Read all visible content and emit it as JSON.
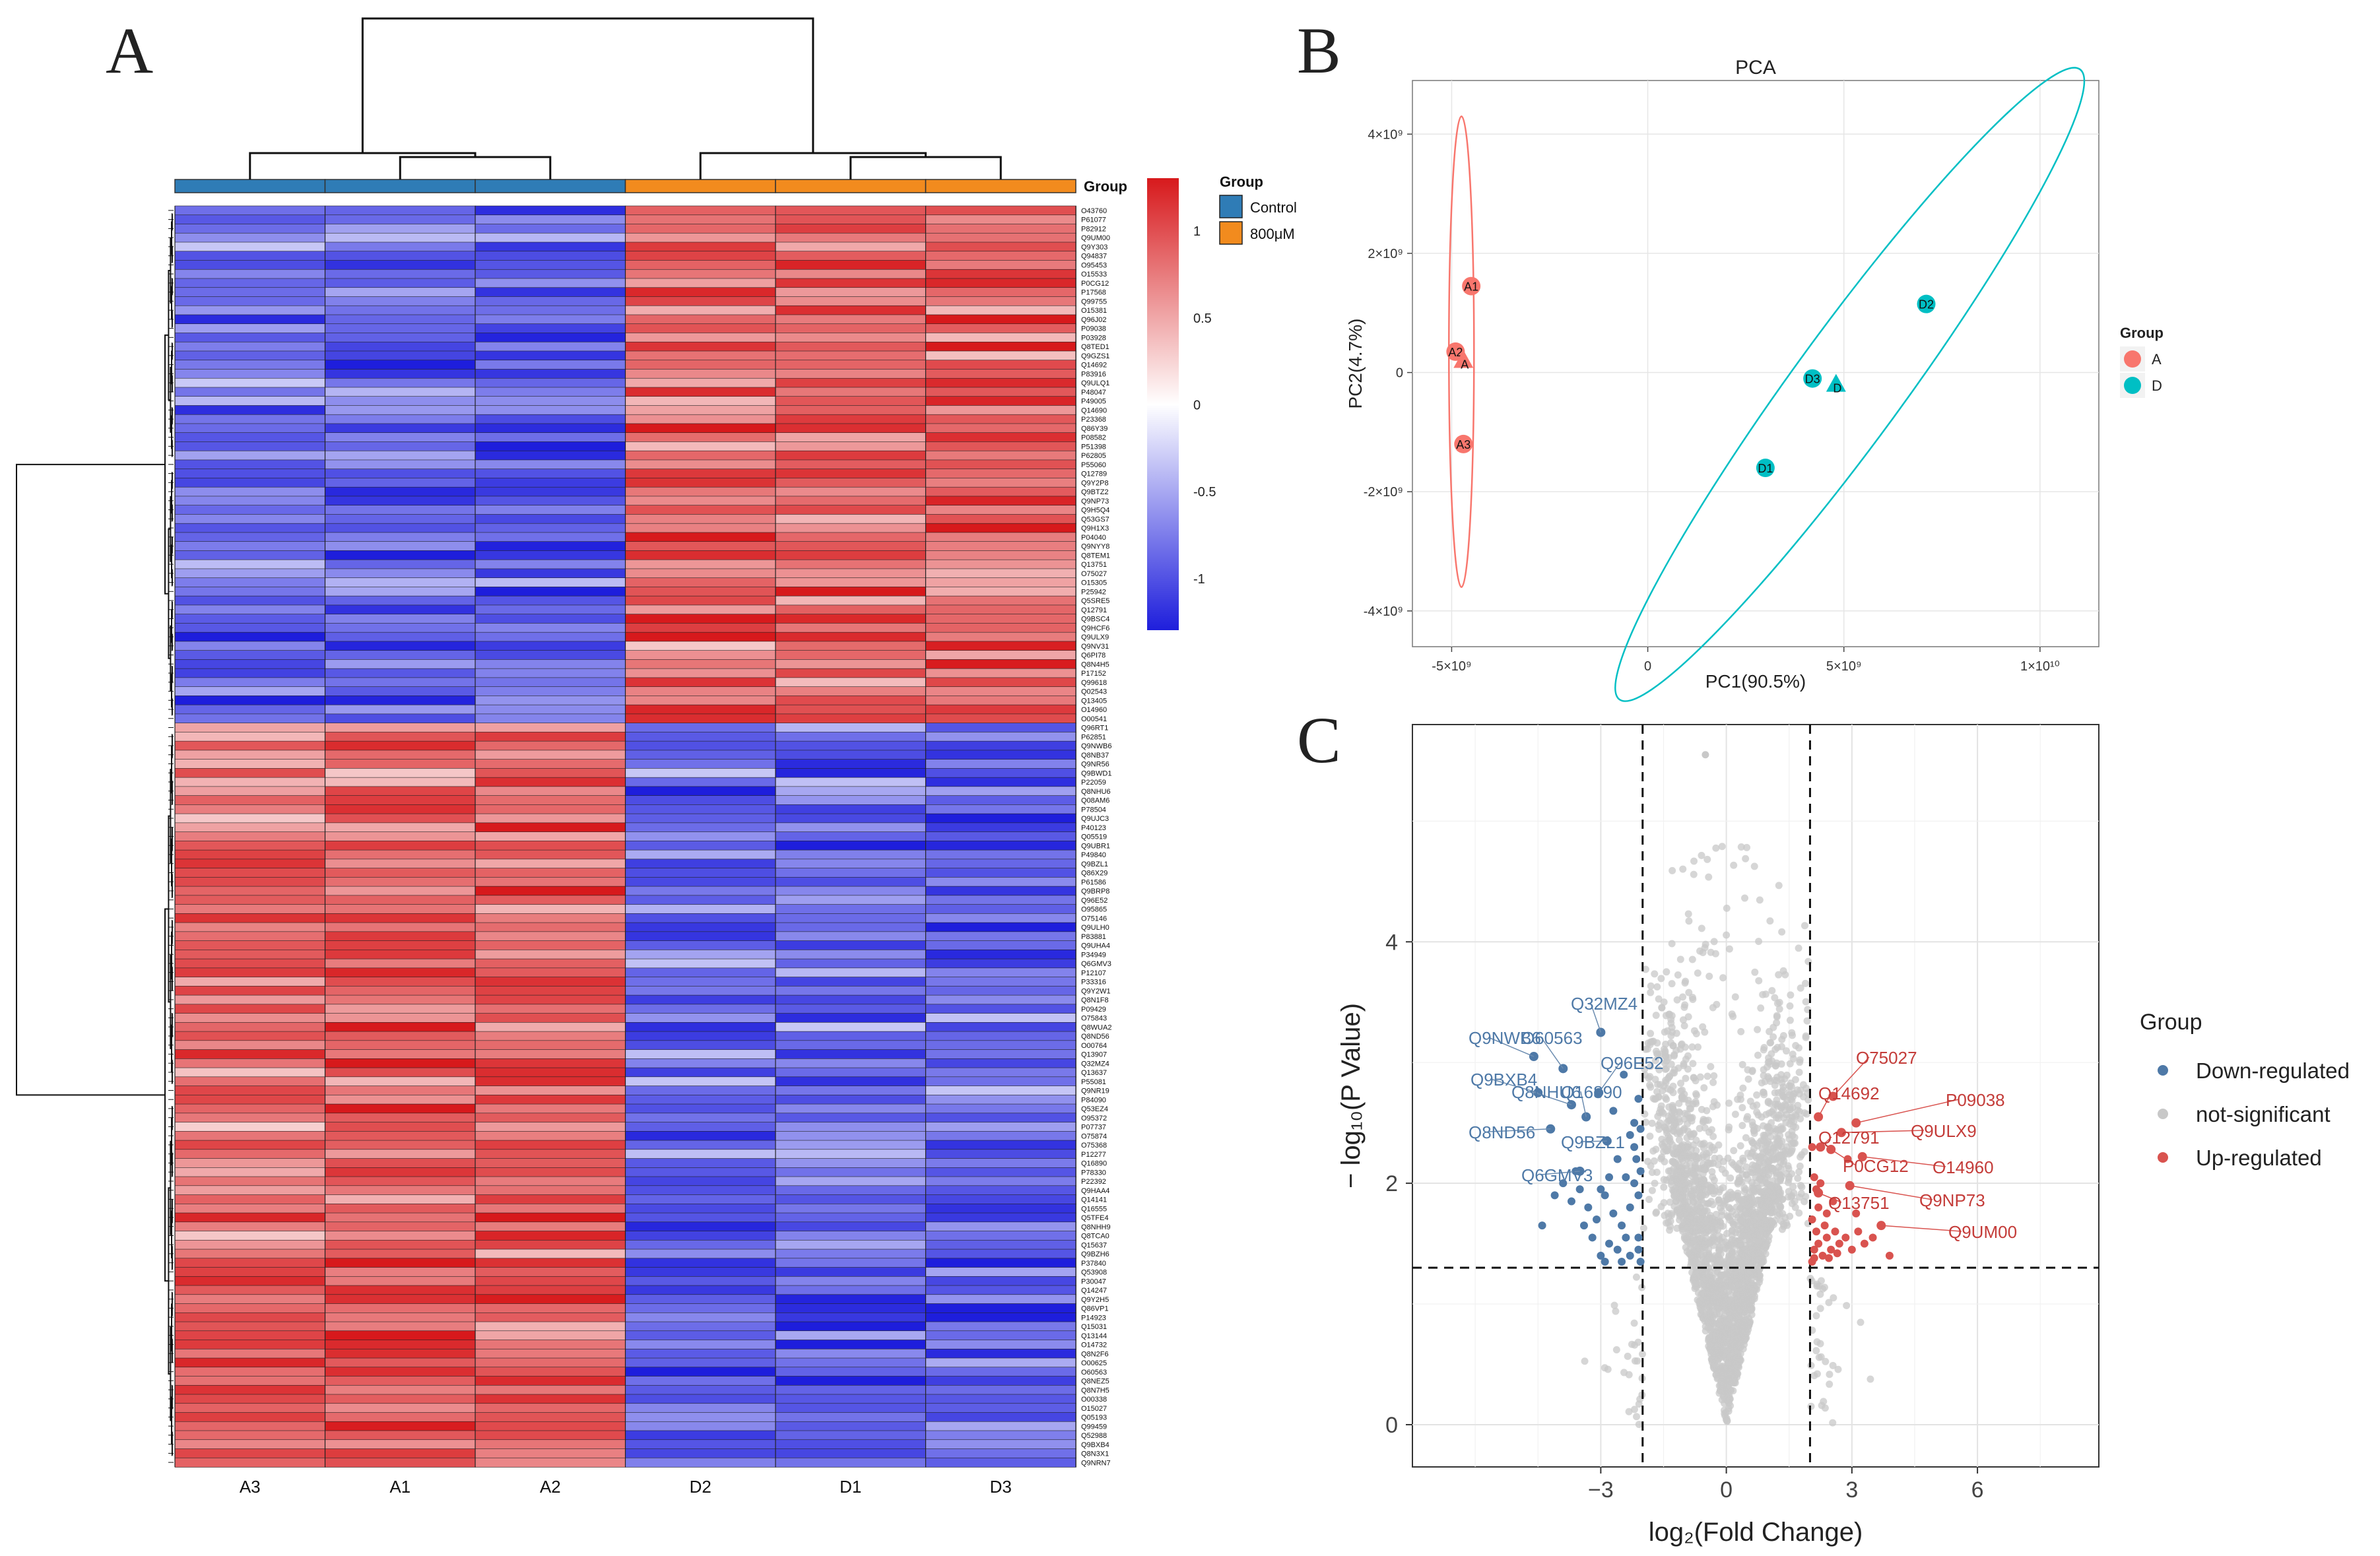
{
  "panels": {
    "A": {
      "letter": "A"
    },
    "B": {
      "letter": "B"
    },
    "C": {
      "letter": "C"
    }
  },
  "chart_data": [
    {
      "type": "heatmap",
      "panel": "A",
      "group_label": "Group",
      "columns": [
        "A3",
        "A1",
        "A2",
        "D2",
        "D1",
        "D3"
      ],
      "column_groups": [
        "Control",
        "Control",
        "Control",
        "800μM",
        "800μM",
        "800μM"
      ],
      "legend": {
        "title": "Group",
        "entries": [
          {
            "label": "Control",
            "color": "#2f7cb6"
          },
          {
            "label": "800μM",
            "color": "#f28b1e"
          }
        ]
      },
      "colorbar": {
        "ticks": [
          "1",
          "0.5",
          "0",
          "-0.5",
          "-1"
        ],
        "values": [
          1,
          0.5,
          0,
          -0.5,
          -1
        ],
        "range": [
          -1.3,
          1.3
        ],
        "colors": [
          "#1e1edc",
          "#ffffff",
          "#d7191c"
        ]
      },
      "upregulated_rows": [
        "O43760",
        "P61077",
        "P82912",
        "Q9UM00",
        "Q9Y303",
        "Q94837",
        "O95453",
        "O15533",
        "P0CG12",
        "P17568",
        "Q99755",
        "O15381",
        "Q96J02",
        "P09038",
        "P03928",
        "Q8TED1",
        "Q9GZS1",
        "Q14692",
        "P83916",
        "Q9ULQ1",
        "P48047",
        "P49005",
        "Q14690",
        "P23368",
        "Q86Y39",
        "P08582",
        "P51398",
        "P62805",
        "P55060",
        "Q12789",
        "Q9Y2P8",
        "Q9BTZ2",
        "Q9NP73",
        "Q9H5Q4",
        "Q53GS7",
        "Q9H1X3",
        "P04040",
        "Q9NYY8",
        "Q8TEM1",
        "Q13751",
        "O75027",
        "O15305",
        "P25942",
        "Q5SRE5",
        "Q12791",
        "Q9BSC4",
        "Q9HCF6",
        "Q9ULX9",
        "Q9NV31",
        "Q6PI78",
        "Q8N4H5",
        "P17152",
        "Q99618",
        "Q02543",
        "Q13405",
        "O14960",
        "O00541"
      ],
      "downregulated_rows": [
        "Q96RT1",
        "P62851",
        "Q9NWB6",
        "Q8NB37",
        "Q9NR56",
        "Q9BWD1",
        "P22059",
        "Q8NHU6",
        "Q08AM6",
        "P78504",
        "Q9UJC3",
        "P40123",
        "Q05519",
        "Q9UBR1",
        "P49840",
        "Q9BZL1",
        "Q86X29",
        "P61586",
        "Q9BRP8",
        "Q96E52",
        "O95865",
        "O75146",
        "Q9ULH0",
        "P83881",
        "Q9UHA4",
        "P34949",
        "Q6GMV3",
        "P12107",
        "P33316",
        "Q9Y2W1",
        "Q8N1F8",
        "P09429",
        "O75843",
        "Q8WUA2",
        "Q8ND56",
        "O00764",
        "Q13907",
        "Q32MZ4",
        "Q13637",
        "P55081",
        "Q9NR19",
        "P84090",
        "Q53EZ4",
        "O95372",
        "P07737",
        "O75874",
        "O75368",
        "P12277",
        "Q16890",
        "P78330",
        "P22392",
        "Q9HAA4",
        "Q14141",
        "Q16555",
        "Q5TFE4",
        "Q8NHH9",
        "Q8TCA0",
        "Q15637",
        "Q9BZH6",
        "P37840",
        "Q53908",
        "P30047",
        "Q14247",
        "Q9Y2H5",
        "Q86VP1",
        "P14923",
        "Q15031",
        "Q13144",
        "O14732",
        "Q8N2F6",
        "O00625",
        "O60563",
        "Q8NEZ5",
        "Q8N7H5",
        "O00338",
        "O15027",
        "Q05193",
        "Q99459",
        "Q52988",
        "Q9BXB4",
        "Q8N3X1",
        "Q9NRN7"
      ]
    },
    {
      "type": "scatter",
      "panel": "B",
      "title": "PCA",
      "xlabel": "PC1(90.5%)",
      "ylabel": "PC2(4.7%)",
      "xlim": [
        -6000000000.0,
        11500000000.0
      ],
      "ylim": [
        -4600000000.0,
        4900000000.0
      ],
      "xticks": [
        {
          "v": -5000000000.0,
          "label": "-5×10⁹"
        },
        {
          "v": 0,
          "label": "0"
        },
        {
          "v": 5000000000.0,
          "label": "5×10⁹"
        },
        {
          "v": 10000000000.0,
          "label": "1×10¹⁰"
        }
      ],
      "yticks": [
        {
          "v": 4000000000.0,
          "label": "4×10⁹"
        },
        {
          "v": 2000000000.0,
          "label": "2×10⁹"
        },
        {
          "v": 0,
          "label": "0"
        },
        {
          "v": -2000000000.0,
          "label": "-2×10⁹"
        },
        {
          "v": -4000000000.0,
          "label": "-4×10⁹"
        }
      ],
      "legend_title": "Group",
      "groups": [
        {
          "name": "A",
          "color": "#f8766d",
          "points": [
            {
              "label": "A1",
              "x": -4500000000.0,
              "y": 1450000000.0
            },
            {
              "label": "A2",
              "x": -4900000000.0,
              "y": 350000000.0
            },
            {
              "label": "A3",
              "x": -4700000000.0,
              "y": -1200000000.0
            }
          ],
          "centroid": {
            "label": "A",
            "x": -4700000000.0,
            "y": 200000000.0
          },
          "ellipse": {
            "cx": -4750000000.0,
            "cy": 350000000.0,
            "rx": 320000000.0,
            "ry": 3950000000.0,
            "angle_deg": 0
          }
        },
        {
          "name": "D",
          "color": "#00bfc4",
          "points": [
            {
              "label": "D2",
              "x": 7100000000.0,
              "y": 1150000000.0
            },
            {
              "label": "D3",
              "x": 4200000000.0,
              "y": -100000000.0
            },
            {
              "label": "D1",
              "x": 3000000000.0,
              "y": -1600000000.0
            }
          ],
          "centroid": {
            "label": "D",
            "x": 4800000000.0,
            "y": -200000000.0
          },
          "ellipse": {
            "cx": 5150000000.0,
            "cy": -200000000.0,
            "rx": 7900000000.0,
            "ry": 920000000.0,
            "angle_deg": 42
          }
        }
      ]
    },
    {
      "type": "scatter",
      "panel": "C",
      "xlabel": "log₂(Fold Change)",
      "ylabel": "− log₁₀(P Value)",
      "xlim": [
        -7.5,
        8.9
      ],
      "ylim": [
        -0.35,
        5.8
      ],
      "xticks": [
        -3,
        0,
        3,
        6
      ],
      "yticks": [
        0,
        2,
        4
      ],
      "thresholds": {
        "fc": [
          -2,
          2
        ],
        "p": 1.3
      },
      "legend": {
        "title": "Group",
        "entries": [
          {
            "label": "Down-regulated",
            "color": "#4e79a7"
          },
          {
            "label": "not-significant",
            "color": "#c8c8c8"
          },
          {
            "label": "Up-regulated",
            "color": "#d9534f"
          }
        ]
      },
      "down_labeled": [
        {
          "label": "Q32MZ4",
          "x": -3.0,
          "y": 3.25
        },
        {
          "label": "Q9NWB6",
          "x": -4.6,
          "y": 3.05
        },
        {
          "label": "O60563",
          "x": -3.9,
          "y": 2.95
        },
        {
          "label": "Q96E52",
          "x": -3.05,
          "y": 2.75
        },
        {
          "label": "Q9BXB4",
          "x": -4.5,
          "y": 2.75
        },
        {
          "label": "Q8NHU6",
          "x": -3.7,
          "y": 2.65
        },
        {
          "label": "Q16890",
          "x": -3.35,
          "y": 2.55
        },
        {
          "label": "Q8ND56",
          "x": -4.2,
          "y": 2.45
        },
        {
          "label": "Q9BZL1",
          "x": -2.85,
          "y": 2.35
        },
        {
          "label": "Q6GMV3",
          "x": -3.5,
          "y": 2.1
        }
      ],
      "up_labeled": [
        {
          "label": "O75027",
          "x": 2.55,
          "y": 2.72
        },
        {
          "label": "Q14692",
          "x": 2.2,
          "y": 2.55
        },
        {
          "label": "P09038",
          "x": 3.1,
          "y": 2.5
        },
        {
          "label": "Q9ULX9",
          "x": 2.75,
          "y": 2.42
        },
        {
          "label": "Q12791",
          "x": 2.25,
          "y": 2.3
        },
        {
          "label": "P0CG12",
          "x": 2.5,
          "y": 2.28
        },
        {
          "label": "O14960",
          "x": 3.25,
          "y": 2.22
        },
        {
          "label": "Q9NP73",
          "x": 2.95,
          "y": 1.98
        },
        {
          "label": "Q13751",
          "x": 2.2,
          "y": 1.92
        },
        {
          "label": "Q9UM00",
          "x": 3.7,
          "y": 1.65
        }
      ],
      "down_points": [
        [
          -4.4,
          1.65
        ],
        [
          -4.1,
          1.9
        ],
        [
          -3.9,
          2.0
        ],
        [
          -3.7,
          1.85
        ],
        [
          -3.5,
          1.95
        ],
        [
          -3.3,
          1.8
        ],
        [
          -3.1,
          1.7
        ],
        [
          -2.9,
          1.9
        ],
        [
          -2.7,
          1.75
        ],
        [
          -2.5,
          1.65
        ],
        [
          -2.3,
          1.8
        ],
        [
          -2.2,
          2.0
        ],
        [
          -2.1,
          1.55
        ],
        [
          -2.15,
          2.2
        ],
        [
          -2.4,
          1.55
        ],
        [
          -2.6,
          1.45
        ],
        [
          -2.8,
          1.5
        ],
        [
          -3.0,
          1.4
        ],
        [
          -3.2,
          1.55
        ],
        [
          -2.3,
          1.4
        ],
        [
          -2.1,
          1.9
        ],
        [
          -2.05,
          2.1
        ],
        [
          -2.2,
          2.3
        ],
        [
          -2.4,
          2.05
        ],
        [
          -2.6,
          2.2
        ],
        [
          -2.8,
          2.05
        ],
        [
          -3.0,
          1.95
        ],
        [
          -3.4,
          1.65
        ],
        [
          -3.6,
          2.1
        ],
        [
          -2.05,
          1.35
        ],
        [
          -2.1,
          1.45
        ],
        [
          -2.5,
          1.35
        ],
        [
          -2.9,
          1.35
        ],
        [
          -2.2,
          2.5
        ],
        [
          -2.3,
          2.4
        ],
        [
          -2.05,
          2.45
        ],
        [
          -2.7,
          2.6
        ],
        [
          -2.45,
          2.9
        ],
        [
          -2.1,
          2.7
        ]
      ],
      "up_points": [
        [
          2.05,
          1.35
        ],
        [
          2.1,
          1.45
        ],
        [
          2.2,
          1.5
        ],
        [
          2.3,
          1.4
        ],
        [
          2.4,
          1.55
        ],
        [
          2.5,
          1.45
        ],
        [
          2.6,
          1.6
        ],
        [
          2.7,
          1.5
        ],
        [
          2.85,
          1.55
        ],
        [
          3.0,
          1.45
        ],
        [
          3.15,
          1.6
        ],
        [
          3.3,
          1.5
        ],
        [
          3.5,
          1.55
        ],
        [
          3.9,
          1.4
        ],
        [
          2.15,
          1.6
        ],
        [
          2.05,
          1.7
        ],
        [
          2.1,
          2.05
        ],
        [
          2.25,
          2.0
        ],
        [
          2.4,
          1.75
        ],
        [
          2.55,
          1.85
        ],
        [
          2.2,
          1.8
        ],
        [
          2.35,
          1.65
        ],
        [
          2.05,
          2.3
        ],
        [
          2.15,
          1.95
        ],
        [
          2.1,
          1.38
        ],
        [
          2.45,
          1.38
        ],
        [
          2.65,
          1.42
        ],
        [
          3.1,
          1.75
        ],
        [
          2.9,
          2.2
        ]
      ]
    }
  ]
}
